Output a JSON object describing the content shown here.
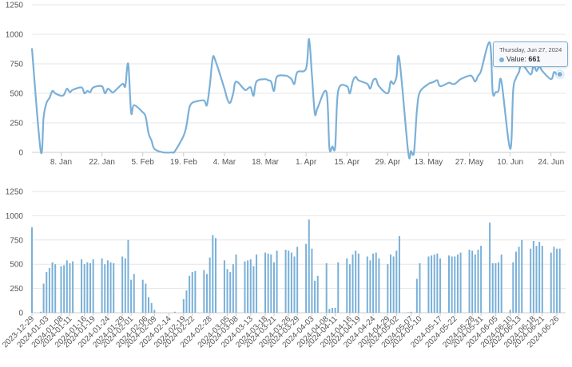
{
  "chart_data": [
    {
      "type": "line",
      "ylim": [
        0,
        1250
      ],
      "yticks": [
        0,
        250,
        500,
        750,
        1000,
        1250
      ],
      "xlim": [
        "2023-12-29",
        "2024-06-29"
      ],
      "xticks": [
        {
          "date": "2024-01-08",
          "label": "8. Jan"
        },
        {
          "date": "2024-01-22",
          "label": "22. Jan"
        },
        {
          "date": "2024-02-05",
          "label": "5. Feb"
        },
        {
          "date": "2024-02-19",
          "label": "19. Feb"
        },
        {
          "date": "2024-03-04",
          "label": "4. Mar"
        },
        {
          "date": "2024-03-18",
          "label": "18. Mar"
        },
        {
          "date": "2024-04-01",
          "label": "1. Apr"
        },
        {
          "date": "2024-04-15",
          "label": "15. Apr"
        },
        {
          "date": "2024-04-29",
          "label": "29. Apr"
        },
        {
          "date": "2024-05-13",
          "label": "13. May"
        },
        {
          "date": "2024-05-27",
          "label": "27. May"
        },
        {
          "date": "2024-06-10",
          "label": "10. Jun"
        },
        {
          "date": "2024-06-24",
          "label": "24. Jun"
        }
      ],
      "color": "#7ab0d8",
      "grid": true,
      "tooltip": {
        "date": "Thursday, Jun 27, 2024",
        "label": "Value:",
        "value": "661",
        "x": "2024-06-27",
        "y": 661
      }
    },
    {
      "type": "bar",
      "ylim": [
        0,
        1250
      ],
      "yticks": [
        0,
        250,
        500,
        750,
        1000,
        1250
      ],
      "xlim": [
        "2023-12-29",
        "2024-06-29"
      ],
      "xticks": [
        "2023-12-29",
        "2024-01-03",
        "2024-01-08",
        "2024-01-11",
        "2024-01-16",
        "2024-01-19",
        "2024-01-24",
        "2024-01-29",
        "2024-02-01",
        "2024-02-06",
        "2024-02-09",
        "2024-02-14",
        "2024-02-19",
        "2024-02-22",
        "2024-02-28",
        "2024-03-05",
        "2024-03-08",
        "2024-03-13",
        "2024-03-18",
        "2024-03-21",
        "2024-03-26",
        "2024-03-29",
        "2024-04-03",
        "2024-04-08",
        "2024-04-11",
        "2024-04-16",
        "2024-04-19",
        "2024-04-24",
        "2024-04-29",
        "2024-05-02",
        "2024-05-07",
        "2024-05-10",
        "2024-05-17",
        "2024-05-22",
        "2024-05-28",
        "2024-05-31",
        "2024-06-05",
        "2024-06-10",
        "2024-06-13",
        "2024-06-18",
        "2024-06-21",
        "2024-06-26"
      ],
      "color": "#7ab0d8",
      "grid": true
    }
  ],
  "series": [
    {
      "date": "2023-12-29",
      "value": 882
    },
    {
      "date": "2024-01-01",
      "value": 10
    },
    {
      "date": "2024-01-02",
      "value": 300
    },
    {
      "date": "2024-01-03",
      "value": 420
    },
    {
      "date": "2024-01-04",
      "value": 460
    },
    {
      "date": "2024-01-05",
      "value": 520
    },
    {
      "date": "2024-01-06",
      "value": 500
    },
    {
      "date": "2024-01-08",
      "value": 480
    },
    {
      "date": "2024-01-09",
      "value": 490
    },
    {
      "date": "2024-01-10",
      "value": 540
    },
    {
      "date": "2024-01-11",
      "value": 510
    },
    {
      "date": "2024-01-12",
      "value": 530
    },
    {
      "date": "2024-01-15",
      "value": 550
    },
    {
      "date": "2024-01-16",
      "value": 500
    },
    {
      "date": "2024-01-17",
      "value": 520
    },
    {
      "date": "2024-01-18",
      "value": 510
    },
    {
      "date": "2024-01-19",
      "value": 550
    },
    {
      "date": "2024-01-22",
      "value": 560
    },
    {
      "date": "2024-01-23",
      "value": 500
    },
    {
      "date": "2024-01-24",
      "value": 540
    },
    {
      "date": "2024-01-25",
      "value": 520
    },
    {
      "date": "2024-01-26",
      "value": 510
    },
    {
      "date": "2024-01-29",
      "value": 580
    },
    {
      "date": "2024-01-30",
      "value": 560
    },
    {
      "date": "2024-01-31",
      "value": 750
    },
    {
      "date": "2024-02-01",
      "value": 340
    },
    {
      "date": "2024-02-02",
      "value": 400
    },
    {
      "date": "2024-02-05",
      "value": 340
    },
    {
      "date": "2024-02-06",
      "value": 300
    },
    {
      "date": "2024-02-07",
      "value": 160
    },
    {
      "date": "2024-02-08",
      "value": 100
    },
    {
      "date": "2024-02-09",
      "value": 30
    },
    {
      "date": "2024-02-12",
      "value": 0
    },
    {
      "date": "2024-02-15",
      "value": 0
    },
    {
      "date": "2024-02-16",
      "value": 10
    },
    {
      "date": "2024-02-19",
      "value": 140
    },
    {
      "date": "2024-02-20",
      "value": 230
    },
    {
      "date": "2024-02-21",
      "value": 380
    },
    {
      "date": "2024-02-22",
      "value": 420
    },
    {
      "date": "2024-02-23",
      "value": 430
    },
    {
      "date": "2024-02-26",
      "value": 440
    },
    {
      "date": "2024-02-27",
      "value": 400
    },
    {
      "date": "2024-02-28",
      "value": 570
    },
    {
      "date": "2024-02-29",
      "value": 800
    },
    {
      "date": "2024-03-01",
      "value": 770
    },
    {
      "date": "2024-03-04",
      "value": 540
    },
    {
      "date": "2024-03-05",
      "value": 450
    },
    {
      "date": "2024-03-06",
      "value": 420
    },
    {
      "date": "2024-03-07",
      "value": 500
    },
    {
      "date": "2024-03-08",
      "value": 600
    },
    {
      "date": "2024-03-11",
      "value": 530
    },
    {
      "date": "2024-03-12",
      "value": 540
    },
    {
      "date": "2024-03-13",
      "value": 550
    },
    {
      "date": "2024-03-14",
      "value": 480
    },
    {
      "date": "2024-03-15",
      "value": 600
    },
    {
      "date": "2024-03-18",
      "value": 620
    },
    {
      "date": "2024-03-19",
      "value": 610
    },
    {
      "date": "2024-03-20",
      "value": 600
    },
    {
      "date": "2024-03-21",
      "value": 520
    },
    {
      "date": "2024-03-22",
      "value": 640
    },
    {
      "date": "2024-03-25",
      "value": 650
    },
    {
      "date": "2024-03-26",
      "value": 640
    },
    {
      "date": "2024-03-27",
      "value": 620
    },
    {
      "date": "2024-03-28",
      "value": 580
    },
    {
      "date": "2024-03-29",
      "value": 680
    },
    {
      "date": "2024-04-01",
      "value": 710
    },
    {
      "date": "2024-04-02",
      "value": 960
    },
    {
      "date": "2024-04-03",
      "value": 660
    },
    {
      "date": "2024-04-04",
      "value": 330
    },
    {
      "date": "2024-04-05",
      "value": 380
    },
    {
      "date": "2024-04-08",
      "value": 510
    },
    {
      "date": "2024-04-09",
      "value": 40
    },
    {
      "date": "2024-04-10",
      "value": 50
    },
    {
      "date": "2024-04-11",
      "value": 50
    },
    {
      "date": "2024-04-12",
      "value": 520
    },
    {
      "date": "2024-04-15",
      "value": 560
    },
    {
      "date": "2024-04-16",
      "value": 500
    },
    {
      "date": "2024-04-17",
      "value": 600
    },
    {
      "date": "2024-04-18",
      "value": 640
    },
    {
      "date": "2024-04-19",
      "value": 610
    },
    {
      "date": "2024-04-22",
      "value": 580
    },
    {
      "date": "2024-04-23",
      "value": 540
    },
    {
      "date": "2024-04-24",
      "value": 610
    },
    {
      "date": "2024-04-25",
      "value": 620
    },
    {
      "date": "2024-04-26",
      "value": 560
    },
    {
      "date": "2024-04-29",
      "value": 500
    },
    {
      "date": "2024-04-30",
      "value": 600
    },
    {
      "date": "2024-05-01",
      "value": 580
    },
    {
      "date": "2024-05-02",
      "value": 640
    },
    {
      "date": "2024-05-03",
      "value": 790
    },
    {
      "date": "2024-05-06",
      "value": 5
    },
    {
      "date": "2024-05-07",
      "value": 10
    },
    {
      "date": "2024-05-08",
      "value": 0
    },
    {
      "date": "2024-05-09",
      "value": 350
    },
    {
      "date": "2024-05-10",
      "value": 510
    },
    {
      "date": "2024-05-13",
      "value": 580
    },
    {
      "date": "2024-05-14",
      "value": 590
    },
    {
      "date": "2024-05-15",
      "value": 600
    },
    {
      "date": "2024-05-16",
      "value": 610
    },
    {
      "date": "2024-05-17",
      "value": 560
    },
    {
      "date": "2024-05-20",
      "value": 590
    },
    {
      "date": "2024-05-21",
      "value": 580
    },
    {
      "date": "2024-05-22",
      "value": 580
    },
    {
      "date": "2024-05-23",
      "value": 600
    },
    {
      "date": "2024-05-24",
      "value": 620
    },
    {
      "date": "2024-05-27",
      "value": 650
    },
    {
      "date": "2024-05-28",
      "value": 640
    },
    {
      "date": "2024-05-29",
      "value": 600
    },
    {
      "date": "2024-05-30",
      "value": 650
    },
    {
      "date": "2024-05-31",
      "value": 690
    },
    {
      "date": "2024-06-03",
      "value": 930
    },
    {
      "date": "2024-06-04",
      "value": 510
    },
    {
      "date": "2024-06-05",
      "value": 510
    },
    {
      "date": "2024-06-06",
      "value": 520
    },
    {
      "date": "2024-06-07",
      "value": 600
    },
    {
      "date": "2024-06-10",
      "value": 30
    },
    {
      "date": "2024-06-11",
      "value": 520
    },
    {
      "date": "2024-06-12",
      "value": 630
    },
    {
      "date": "2024-06-13",
      "value": 680
    },
    {
      "date": "2024-06-14",
      "value": 750
    },
    {
      "date": "2024-06-17",
      "value": 660
    },
    {
      "date": "2024-06-18",
      "value": 740
    },
    {
      "date": "2024-06-19",
      "value": 690
    },
    {
      "date": "2024-06-20",
      "value": 730
    },
    {
      "date": "2024-06-21",
      "value": 690
    },
    {
      "date": "2024-06-24",
      "value": 620
    },
    {
      "date": "2024-06-25",
      "value": 680
    },
    {
      "date": "2024-06-26",
      "value": 660
    },
    {
      "date": "2024-06-27",
      "value": 661
    }
  ]
}
